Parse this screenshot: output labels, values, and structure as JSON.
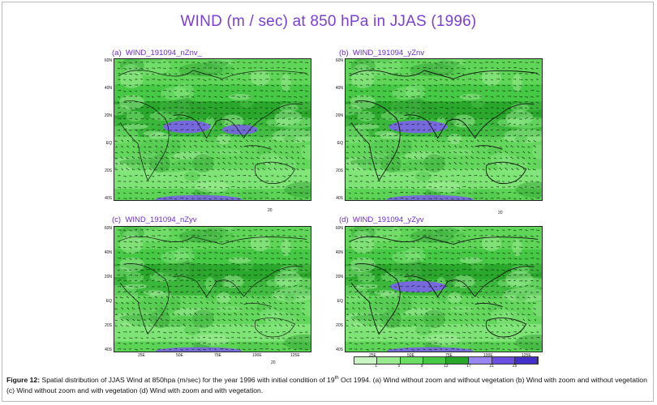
{
  "figure": {
    "title": "WIND (m / sec) at 850 hPa in JJAS (1996)",
    "caption_label": "Figure 12:",
    "caption_text_1": " Spatial distribution of JJAS Wind at 850hpa (m/sec) for the year 1996 with initial condition of 19",
    "caption_sup": "th",
    "caption_text_2": " Oct 1994. (a) Wind without zoom and without vegetation (b) Wind with zoom and without vegetation (c) Wind without zoom and with vegetation (d) Wind with zoom and with vegetation."
  },
  "panels": [
    {
      "id": "a",
      "label": "(a)  WIND_191094_nZnv_",
      "ref_vector": "20"
    },
    {
      "id": "b",
      "label": "(b)  WIND_191094_yZnv",
      "ref_vector": "20"
    },
    {
      "id": "c",
      "label": "(c)  WIND_191094_nZyv",
      "ref_vector": "20"
    },
    {
      "id": "d",
      "label": "(d)  WIND_191094_yZyv",
      "ref_vector": ""
    }
  ],
  "axes": {
    "y_ticks": [
      "60N",
      "40N",
      "20N",
      "EQ",
      "20S",
      "40S"
    ],
    "x_ticks": [
      "25E",
      "50E",
      "75E",
      "100E",
      "125E"
    ]
  },
  "colorbar": {
    "labels": [
      "1",
      "5",
      "9",
      "13",
      "17",
      "21",
      "25"
    ],
    "colors": [
      "#c8f5c2",
      "#9aea90",
      "#6bdf63",
      "#46c944",
      "#28a82a",
      "#9a86f0",
      "#6a4fe0",
      "#4330c9"
    ]
  },
  "colors": {
    "title": "#7b3fd6",
    "panel_label": "#6a2cc9",
    "wind_low": "#c8f5c2",
    "wind_mid": "#6bdf63",
    "wind_high": "#1f8f24",
    "jet": "#7a63e6"
  }
}
